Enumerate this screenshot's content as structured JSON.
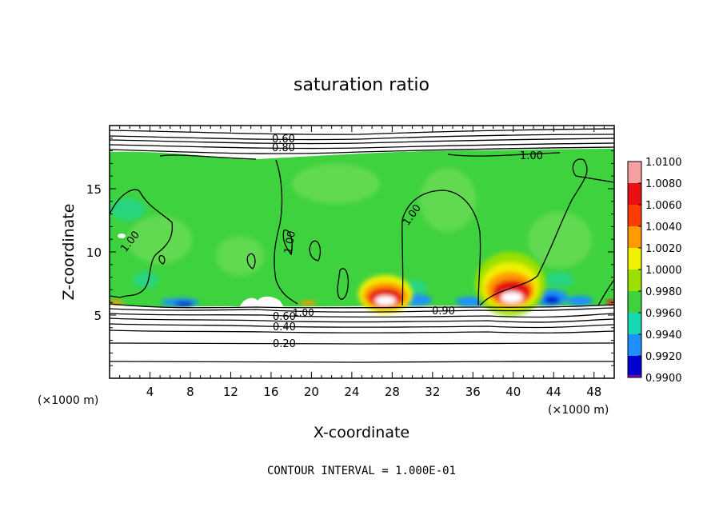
{
  "chart_data": {
    "type": "heatmap",
    "title": "saturation ratio",
    "xlabel": "X-coordinate",
    "ylabel": "Z-coordinate",
    "x_unit": "(×1000 m)",
    "x_ticks": [
      4,
      8,
      12,
      16,
      20,
      24,
      28,
      32,
      36,
      40,
      44,
      48
    ],
    "y_ticks": [
      5,
      10,
      15
    ],
    "xlim": [
      0,
      50
    ],
    "ylim": [
      0,
      20
    ],
    "footer": "CONTOUR INTERVAL = 1.000E-01",
    "colorbar": {
      "levels": [
        "1.0100",
        "1.0080",
        "1.0060",
        "1.0040",
        "1.0020",
        "1.0000",
        "0.9980",
        "0.9960",
        "0.9940",
        "0.9920",
        "0.9900"
      ],
      "colors": [
        "#f5a0a0",
        "#e81010",
        "#ff3c00",
        "#ff9a00",
        "#f0f000",
        "#9ae000",
        "#3fd23f",
        "#18d8b4",
        "#1e90ff",
        "#0000d0",
        "#7c00b0"
      ]
    },
    "contour_labels": [
      "0.60",
      "0.80",
      "1.00",
      "1.00",
      "1.00",
      "1.00",
      "1.00",
      "0.90",
      "0.60",
      "0.40",
      "0.20"
    ]
  }
}
